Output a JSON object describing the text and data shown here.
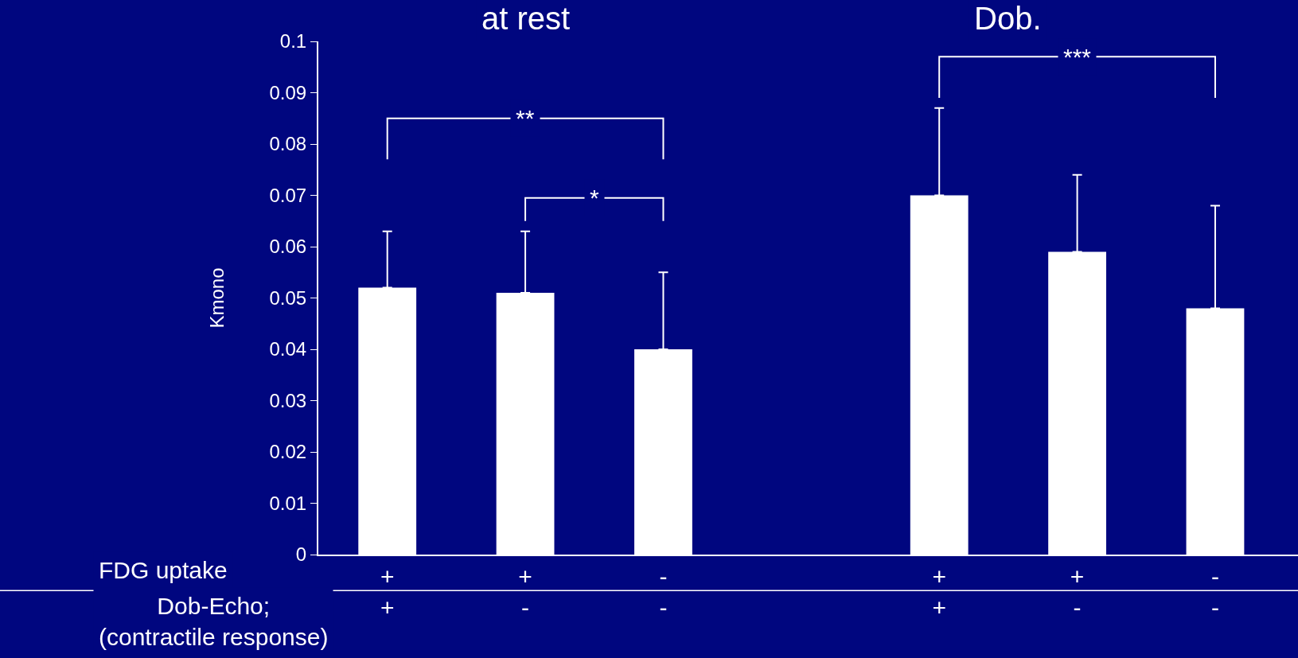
{
  "chart_data": {
    "type": "bar",
    "ylabel": "Kmono",
    "categories": [
      "+\n+",
      "+\n-",
      "-\n-",
      null,
      "+\n+",
      "+\n-",
      "-\n-"
    ],
    "values": [
      0.052,
      0.051,
      0.04,
      null,
      0.07,
      0.059,
      0.048
    ],
    "errors": [
      [
        0.052,
        0.063
      ],
      [
        0.051,
        0.063
      ],
      [
        0.04,
        0.055
      ],
      null,
      [
        0.07,
        0.087
      ],
      [
        0.059,
        0.074
      ],
      [
        0.048,
        0.068
      ]
    ],
    "color": "#ffffff",
    "ylim": [
      0,
      0.1
    ],
    "yticks": [
      0,
      0.01,
      0.02,
      0.03,
      0.04,
      0.05,
      0.06,
      0.07,
      0.08,
      0.09,
      0.1
    ],
    "annotations": [
      "at rest",
      "Dob.",
      "**",
      "*",
      "***",
      "FDG uptake",
      "Dob-Echo;\n(contractile response)"
    ],
    "grid": false,
    "legend": false
  }
}
